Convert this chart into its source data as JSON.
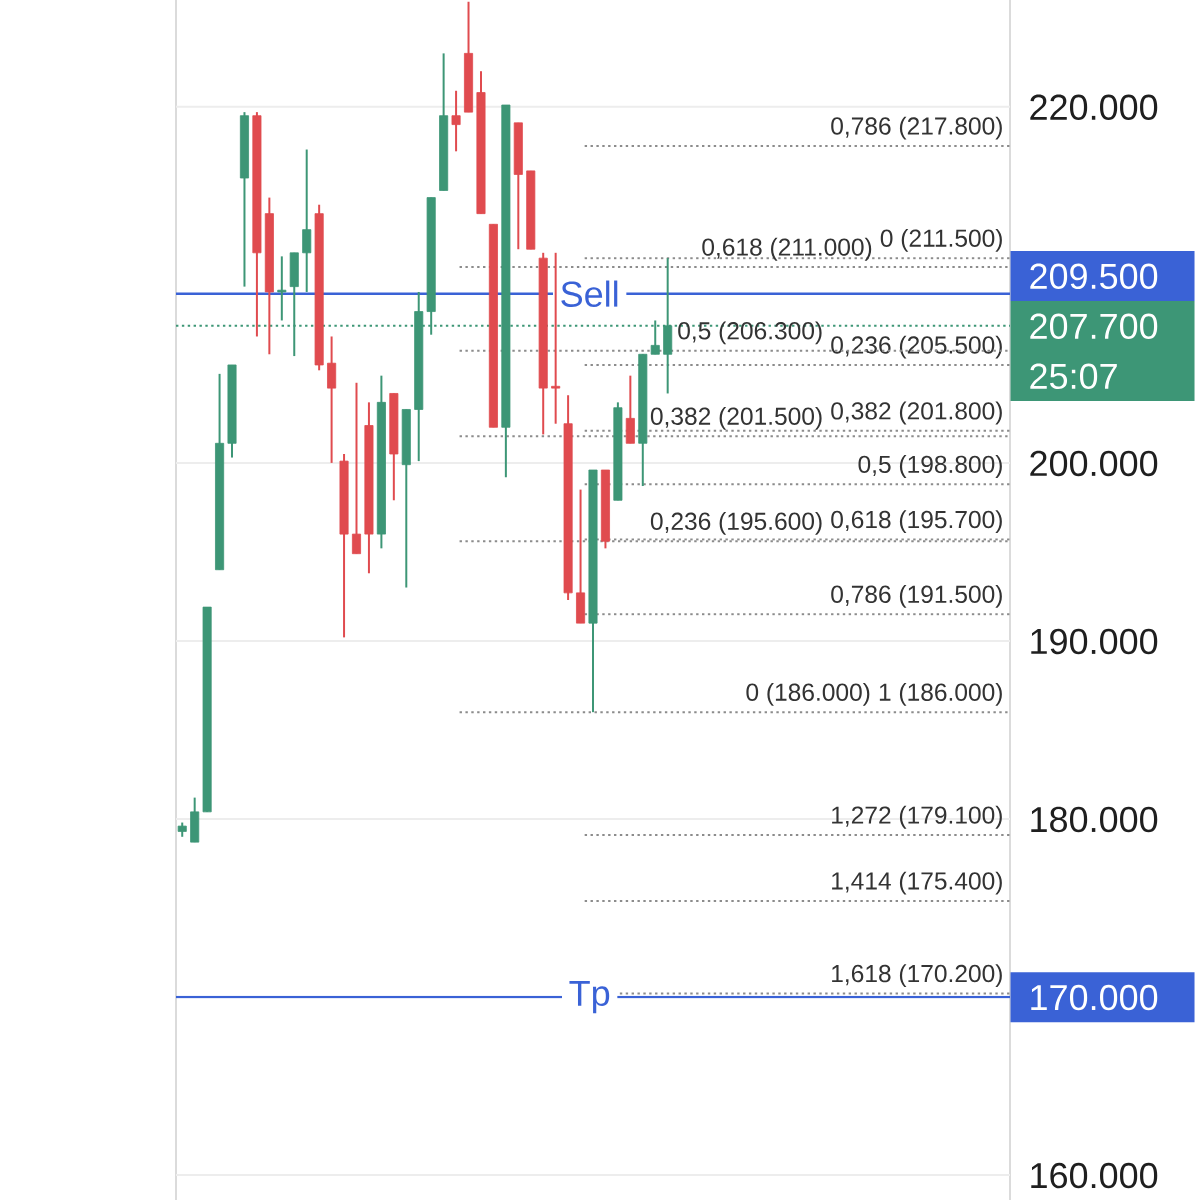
{
  "chart_data": {
    "type": "candlestick",
    "categories": [
      null,
      null,
      null,
      null,
      null,
      null,
      null,
      null,
      null,
      null,
      null,
      null,
      null,
      null,
      null,
      null,
      null,
      null,
      null,
      null,
      null,
      null,
      null,
      null,
      null,
      null,
      null,
      null,
      null,
      null,
      null,
      null,
      null,
      null,
      null,
      null,
      null,
      null,
      null,
      null,
      null,
      null,
      null,
      null,
      null,
      null,
      null,
      null,
      null,
      null,
      null,
      null,
      null,
      null,
      null,
      null,
      null,
      null,
      null,
      null,
      null,
      null,
      null,
      null,
      null,
      null,
      null
    ],
    "ohlc": [
      [
        179300,
        179800,
        179000,
        179600
      ],
      [
        178700,
        181200,
        178700,
        180400
      ],
      [
        180400,
        191900,
        180400,
        191900
      ],
      [
        194000,
        205000,
        194000,
        201100
      ],
      [
        201100,
        205500,
        200300,
        205500
      ],
      [
        216000,
        219700,
        209900,
        219500
      ],
      [
        219500,
        219700,
        207100,
        211800
      ],
      [
        214000,
        214900,
        206100,
        209600
      ],
      [
        209600,
        211600,
        208000,
        209700
      ],
      [
        209900,
        211800,
        206000,
        211800
      ],
      [
        211800,
        217600,
        209600,
        213100
      ],
      [
        214000,
        214500,
        205200,
        205500
      ],
      [
        205600,
        207100,
        200000,
        204200
      ],
      [
        200100,
        200500,
        190200,
        196000
      ],
      [
        196000,
        204500,
        194900,
        194900
      ],
      [
        202100,
        203400,
        193800,
        196000
      ],
      [
        196000,
        204900,
        195200,
        203400
      ],
      [
        203900,
        203900,
        197900,
        200500
      ],
      [
        199900,
        203000,
        193000,
        203000
      ],
      [
        203000,
        209600,
        200100,
        208500
      ],
      [
        208500,
        214900,
        207200,
        214900
      ],
      [
        215300,
        223000,
        215300,
        219500
      ],
      [
        219500,
        220900,
        217500,
        219000
      ],
      [
        223000,
        225900,
        219700,
        219700
      ],
      [
        220800,
        222000,
        214000,
        214000
      ],
      [
        213400,
        213400,
        202000,
        202000
      ],
      [
        202000,
        220100,
        199200,
        220100
      ],
      [
        219100,
        219100,
        212000,
        216200
      ],
      [
        216400,
        216400,
        212000,
        212000
      ],
      [
        211500,
        211800,
        201600,
        204200
      ],
      [
        204300,
        211800,
        202200,
        204200
      ],
      [
        202200,
        203800,
        192300,
        192700
      ],
      [
        192700,
        198500,
        191000,
        191000
      ],
      [
        191000,
        199600,
        186000,
        199600
      ],
      [
        199600,
        199600,
        195200,
        195600
      ],
      [
        197900,
        203400,
        197900,
        203100
      ],
      [
        202500,
        204900,
        201100,
        201100
      ],
      [
        201100,
        206100,
        198700,
        206100
      ],
      [
        206100,
        208000,
        206100,
        206600
      ],
      [
        206100,
        211500,
        203900,
        207700
      ],
      null,
      null,
      null,
      null,
      null,
      null,
      null,
      null,
      null,
      null,
      null,
      null,
      null,
      null,
      null,
      null,
      null,
      null,
      null,
      null,
      null,
      null,
      null,
      null,
      null,
      null,
      null
    ],
    "colors": [
      "#3d9676",
      "#3d9676",
      "#3d9676",
      "#3d9676",
      "#3d9676",
      "#3d9676",
      "#e04b4f",
      "#e04b4f",
      "#3d9676",
      "#3d9676",
      "#3d9676",
      "#e04b4f",
      "#e04b4f",
      "#e04b4f",
      "#e04b4f",
      "#e04b4f",
      "#3d9676",
      "#e04b4f",
      "#3d9676",
      "#3d9676",
      "#3d9676",
      "#3d9676",
      "#e04b4f",
      "#e04b4f",
      "#e04b4f",
      "#e04b4f",
      "#3d9676",
      "#e04b4f",
      "#e04b4f",
      "#e04b4f",
      "#e04b4f",
      "#e04b4f",
      "#e04b4f",
      "#3d9676",
      "#e04b4f",
      "#3d9676",
      "#e04b4f",
      "#3d9676",
      "#3d9676",
      "#3d9676",
      null,
      null,
      null,
      null,
      null,
      null,
      null,
      null,
      null,
      null,
      null,
      null,
      null,
      null,
      null,
      null,
      null,
      null,
      null,
      null,
      null,
      null,
      null,
      null,
      null,
      null,
      null
    ],
    "ylim": [
      158600,
      226000
    ],
    "yticks": [
      {
        "value": 160000,
        "label": "160.000"
      },
      {
        "value": 170000,
        "label": "170.000"
      },
      {
        "value": 180000,
        "label": "180.000"
      },
      {
        "value": 190000,
        "label": "190.000"
      },
      {
        "value": 200000,
        "label": "200.000"
      },
      {
        "value": 207700,
        "label": "207.700"
      },
      {
        "value": 209500,
        "label": "209.500"
      },
      {
        "value": 220000,
        "label": "220.000"
      }
    ],
    "tick_labels": "y",
    "grid": "y",
    "ref_lines": [
      {
        "axis": "y",
        "value": 207700,
        "color": "#3d9676",
        "line_style": "dotted"
      },
      {
        "axis": "y",
        "value": 211500,
        "label": "0 (211.500)",
        "color": "#8c8c8c",
        "line_style": "dotted"
      },
      {
        "axis": "y",
        "value": 205500,
        "label": "0,236 (205.500)",
        "color": "#8c8c8c",
        "line_style": "dotted"
      },
      {
        "axis": "y",
        "value": 201800,
        "label": "0,382 (201.800)",
        "color": "#8c8c8c",
        "line_style": "dotted"
      },
      {
        "axis": "y",
        "value": 198800,
        "label": "0,5 (198.800)",
        "color": "#8c8c8c",
        "line_style": "dotted"
      },
      {
        "axis": "y",
        "value": 195700,
        "label": "0,618 (195.700)",
        "color": "#8c8c8c",
        "line_style": "dotted"
      },
      {
        "axis": "y",
        "value": 191500,
        "label": "0,786 (191.500)",
        "color": "#8c8c8c",
        "line_style": "dotted"
      },
      {
        "axis": "y",
        "value": 186000,
        "label": "1 (186.000)",
        "color": "#8c8c8c",
        "line_style": "dotted"
      },
      {
        "axis": "y",
        "value": 179100,
        "label": "1,272 (179.100)",
        "color": "#8c8c8c",
        "line_style": "dotted"
      },
      {
        "axis": "y",
        "value": 175400,
        "label": "1,414 (175.400)",
        "color": "#8c8c8c",
        "line_style": "dotted"
      },
      {
        "axis": "y",
        "value": 170200,
        "label": "1,618 (170.200)",
        "color": "#8c8c8c",
        "line_style": "dotted"
      },
      {
        "axis": "y",
        "value": 217800,
        "label": "0,786 (217.800)",
        "color": "#8c8c8c",
        "line_style": "dotted"
      },
      {
        "axis": "y",
        "value": 211000,
        "label": "0,618 (211.000)",
        "color": "#8c8c8c",
        "line_style": "dotted"
      },
      {
        "axis": "y",
        "value": 206300,
        "label": "0,5 (206.300)",
        "color": "#8c8c8c",
        "line_style": "dotted"
      },
      {
        "axis": "y",
        "value": 201500,
        "label": "0,382 (201.500)",
        "color": "#8c8c8c",
        "line_style": "dotted"
      },
      {
        "axis": "y",
        "value": 195600,
        "label": "0,236 (195.600)",
        "color": "#8c8c8c",
        "line_style": "dotted"
      },
      {
        "axis": "y",
        "value": 209500,
        "label": "Sell",
        "color": "#3a62d6",
        "line_style": "solid"
      },
      {
        "axis": "y",
        "value": 170000,
        "label": "Tp",
        "color": "#3a62d6",
        "line_style": "solid"
      }
    ],
    "annotations": [
      "25:07",
      {
        "text": "0 (186.000)",
        "y": 186000
      }
    ]
  }
}
